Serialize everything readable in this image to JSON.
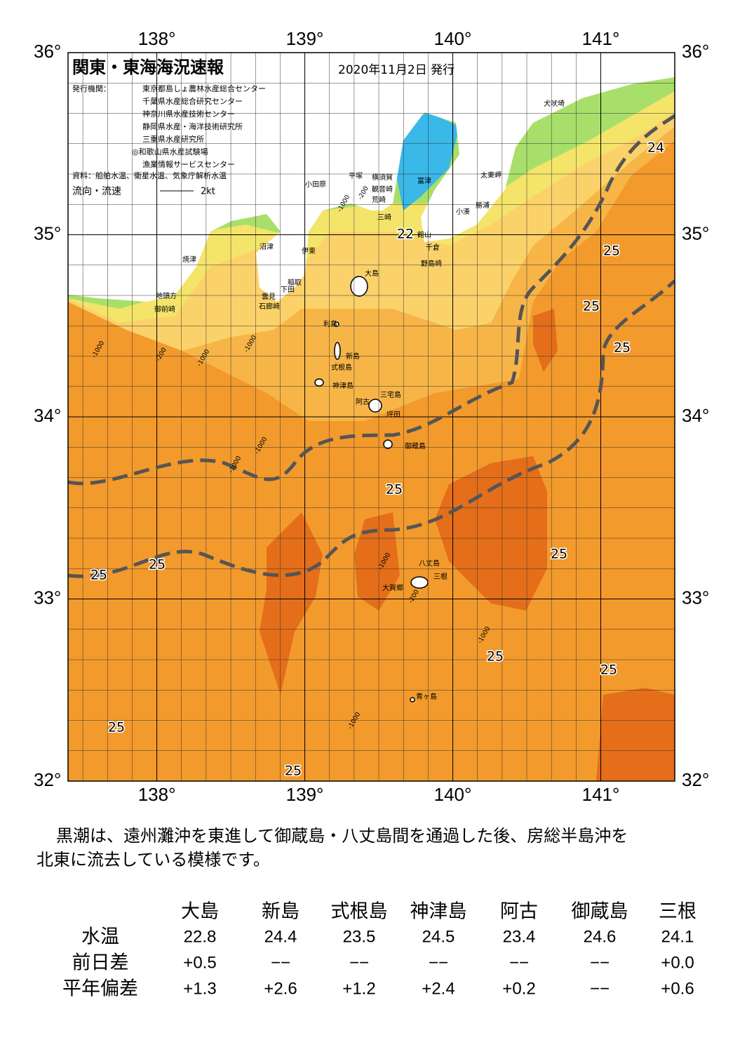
{
  "map": {
    "title": "関東・東海海況速報",
    "date": "2020年11月2日 発行",
    "issuer_label": "発行機関：",
    "issuers": [
      "東京都島しょ農林水産総合センター",
      "千葉県水産総合研究センター",
      "神奈川県水産技術センター",
      "静岡県水産・海洋技術研究所",
      "三重県水産研究所",
      "◎和歌山県水産試験場",
      "漁業情報サービスセンター"
    ],
    "source": "資料：船舶水温、衛星水温、気象庁解析水温",
    "flow_label": "流向・流速",
    "flow_scale": "2kt",
    "xlim": [
      137.4,
      141.5
    ],
    "ylim": [
      32,
      36
    ],
    "xticks": [
      {
        "value": 138,
        "label": "138°"
      },
      {
        "value": 139,
        "label": "139°"
      },
      {
        "value": 140,
        "label": "140°"
      },
      {
        "value": 141,
        "label": "141°"
      }
    ],
    "yticks": [
      {
        "value": 32,
        "label": "32°"
      },
      {
        "value": 33,
        "label": "33°"
      },
      {
        "value": 34,
        "label": "34°"
      },
      {
        "value": 35,
        "label": "35°"
      },
      {
        "value": 36,
        "label": "36°"
      }
    ],
    "places": [
      "犬吠埼",
      "太東岬",
      "勝浦",
      "小湊",
      "富津",
      "横須賀",
      "観音崎",
      "荒崎",
      "三崎",
      "館山",
      "千倉",
      "野島崎",
      "平塚",
      "小田原",
      "沼津",
      "伊東",
      "焼津",
      "大島",
      "稲取",
      "下田",
      "雲見",
      "石廊崎",
      "地頭方",
      "御前崎",
      "利島",
      "新島",
      "式根島",
      "神津島",
      "三宅島",
      "阿古",
      "坪田",
      "御蔵島",
      "八丈島",
      "三根",
      "大賀郷",
      "青ヶ島"
    ],
    "isotherm_labels": [
      "24",
      "22",
      "25",
      "25",
      "25",
      "25",
      "25",
      "25",
      "25",
      "25",
      "25",
      "25",
      "25"
    ],
    "depth_labels": [
      "-1000",
      "-200",
      "-1000",
      "-1000",
      "-200",
      "-1000",
      "-1000",
      "-1000",
      "-1000",
      "-200",
      "-1000",
      "-1000"
    ]
  },
  "description": [
    "黒潮は、遠州灘沖を東進して御蔵島・八丈島間を通過した後、房総半島沖を",
    "北東に流去している模様です。"
  ],
  "table": {
    "columns": [
      "大島",
      "新島",
      "式根島",
      "神津島",
      "阿古",
      "御蔵島",
      "三根"
    ],
    "rows": [
      {
        "label": "水温",
        "values": [
          "22.8",
          "24.4",
          "23.5",
          "24.5",
          "23.4",
          "24.6",
          "24.1"
        ]
      },
      {
        "label": "前日差",
        "values": [
          "+0.5",
          "−−",
          "−−",
          "−−",
          "−−",
          "−−",
          "+0.0"
        ]
      },
      {
        "label": "平年偏差",
        "values": [
          "+1.3",
          "+2.6",
          "+1.2",
          "+2.4",
          "+0.2",
          "−−",
          "+0.6"
        ]
      }
    ]
  }
}
